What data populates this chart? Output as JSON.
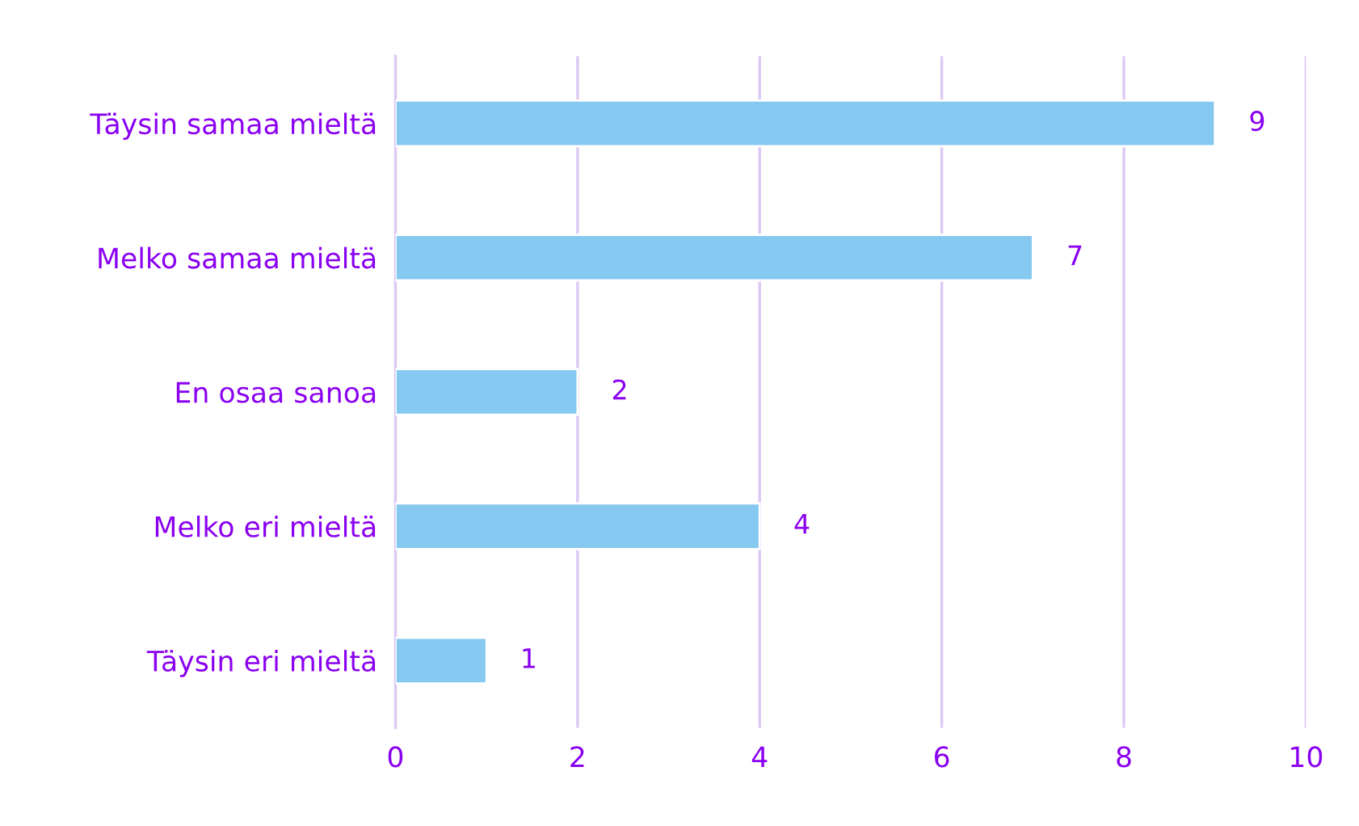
{
  "chart_data": {
    "type": "bar",
    "orientation": "horizontal",
    "categories": [
      "Täysin samaa mieltä",
      "Melko samaa mieltä",
      "En osaa sanoa",
      "Melko eri mieltä",
      "Täysin eri mieltä"
    ],
    "values": [
      9,
      7,
      2,
      4,
      1
    ],
    "color": "#85c8f0",
    "xlim": [
      0,
      10
    ],
    "xticks": [
      0,
      2,
      4,
      6,
      8,
      10
    ],
    "grid": "x",
    "data_labels": true,
    "legend": false
  }
}
